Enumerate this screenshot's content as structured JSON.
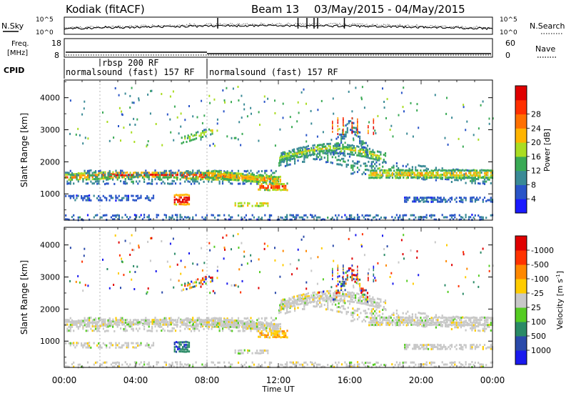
{
  "header": {
    "station": "Kodiak (fitACF)",
    "beam_label": "Beam 13",
    "date_range": "03/May/2015 - 04/May/2015"
  },
  "strip_panels": {
    "nsky": {
      "left_label": "N.Sky",
      "right_label": "N.Search",
      "tick_top": "10^5",
      "tick_bottom": "10^0",
      "tick_top_right": "10^5",
      "tick_bottom_right": "10^0"
    },
    "freq": {
      "left_label_line1": "Freq.",
      "left_label_line2": "[MHz]",
      "right_label": "Nave",
      "left_ticks": [
        "18",
        "8"
      ],
      "right_ticks": [
        "60",
        "0"
      ]
    },
    "cpid": {
      "label": "CPID",
      "segments": [
        {
          "text": "normalsound (fast) 157 RF",
          "start_hour": 0
        },
        {
          "text": "rbsp 200 RF",
          "start_hour": 2
        },
        {
          "text": "normalsound (fast) 157 RF",
          "start_hour": 8
        }
      ]
    }
  },
  "chart_data": [
    {
      "type": "heatmap",
      "quantity": "power",
      "ylabel": "Slant Range [km]",
      "ylim": [
        180,
        4550
      ],
      "yticks": [
        1000,
        2000,
        3000,
        4000
      ],
      "xlim_hours": [
        0,
        24
      ],
      "colorbar": {
        "label": "Power [dB]",
        "ticks": [
          "4",
          "8",
          "12",
          "16",
          "20",
          "24",
          "28"
        ],
        "colors": [
          "#1a1aff",
          "#2a55c8",
          "#3a8a96",
          "#3aaa55",
          "#aadd22",
          "#ffb400",
          "#ff7000",
          "#ff3000",
          "#e00000"
        ]
      },
      "scatter_bands": [
        {
          "hours": [
            0,
            24
          ],
          "range_km": [
            1400,
            1750
          ],
          "color": "#ff6000"
        }
      ]
    },
    {
      "type": "heatmap",
      "quantity": "velocity",
      "ylabel": "Slant Range [km]",
      "ylim": [
        180,
        4550
      ],
      "yticks": [
        1000,
        2000,
        3000,
        4000
      ],
      "xlim_hours": [
        0,
        24
      ],
      "xticks": [
        "00:00",
        "04:00",
        "08:00",
        "12:00",
        "16:00",
        "20:00",
        "00:00"
      ],
      "xlabel": "Time UT",
      "colorbar": {
        "label": "Velocity [m s^-1]",
        "ticks": [
          "1000",
          "500",
          "100",
          "25",
          "-25",
          "-100",
          "-500",
          "-1000"
        ],
        "colors": [
          "#1a1aee",
          "#2a4aaa",
          "#2a8a66",
          "#55cc22",
          "#c8c8c8",
          "#ffcc00",
          "#ff8800",
          "#ff3300",
          "#e00000"
        ]
      }
    }
  ],
  "labels": {
    "colorbar_power_label": "Power [dB]",
    "colorbar_velocity_label": "Velocity [m s",
    "colorbar_velocity_sup": "-1",
    "colorbar_velocity_end": "]"
  }
}
